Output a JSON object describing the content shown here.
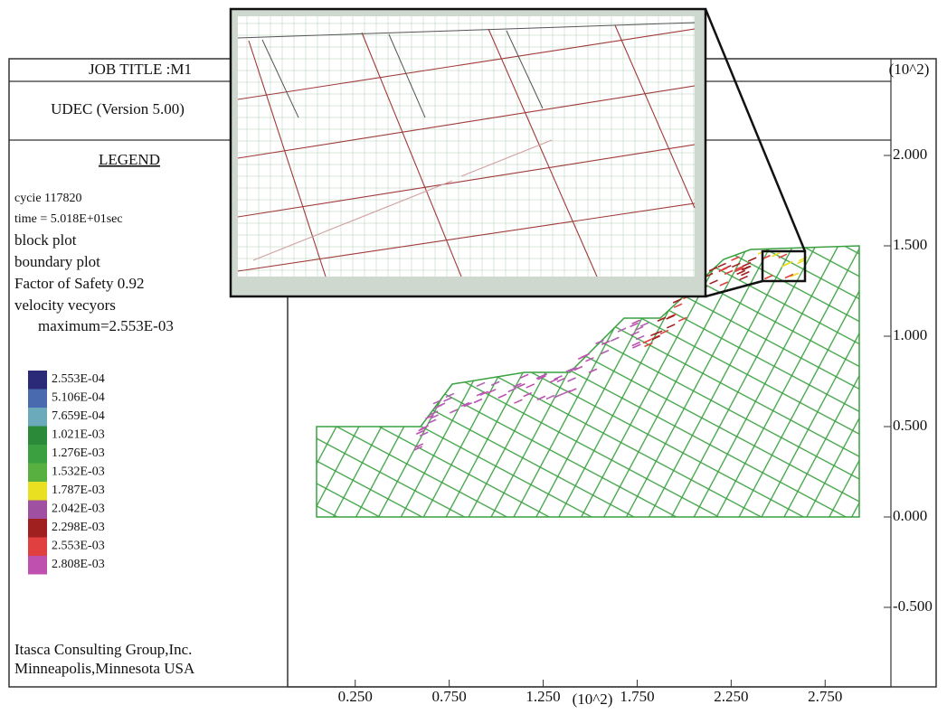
{
  "header": {
    "job_title": "JOB TITLE :M1",
    "version": "UDEC (Version 5.00)"
  },
  "legend": {
    "title": "LEGEND",
    "lines": [
      "cycie  117820",
      "time = 5.018E+01sec",
      "block plot",
      "boundary plot",
      "Factor of Safety 0.92",
      "velocity vecyors",
      "maximum=2.553E-03"
    ],
    "scale": [
      {
        "label": "2.553E-04",
        "color": "#2a2a78"
      },
      {
        "label": "5.106E-04",
        "color": "#4a6ab0"
      },
      {
        "label": "7.659E-04",
        "color": "#6aaabb"
      },
      {
        "label": "1.021E-03",
        "color": "#2a8a3a"
      },
      {
        "label": "1.276E-03",
        "color": "#3aa040"
      },
      {
        "label": "1.532E-03",
        "color": "#58b040"
      },
      {
        "label": "1.787E-03",
        "color": "#e8e020"
      },
      {
        "label": "2.042E-03",
        "color": "#a050a0"
      },
      {
        "label": "2.298E-03",
        "color": "#a02020"
      },
      {
        "label": "2.553E-03",
        "color": "#e04040"
      },
      {
        "label": "2.808E-03",
        "color": "#c050b0"
      }
    ]
  },
  "footer": {
    "lines": [
      "Itasca Consulting Group,Inc.",
      "Minneapolis,Minnesota USA"
    ]
  },
  "chart_data": {
    "type": "block-plot",
    "x_unit": "(10^2)",
    "y_unit": "(10^2)",
    "xlim": [
      -0.1,
      3.1
    ],
    "ylim": [
      -0.94,
      2.535
    ],
    "xticks": [
      {
        "value": 0.25,
        "label": "0.250"
      },
      {
        "value": 0.75,
        "label": "0.750"
      },
      {
        "value": 1.25,
        "label": "1.250"
      },
      {
        "value": 1.75,
        "label": "1.750"
      },
      {
        "value": 2.25,
        "label": "2.250"
      },
      {
        "value": 2.75,
        "label": "2.750"
      }
    ],
    "yticks": [
      {
        "value": -0.5,
        "label": "-0.500"
      },
      {
        "value": 0,
        "label": "0.000"
      },
      {
        "value": 0.5,
        "label": "0.500"
      },
      {
        "value": 1,
        "label": "1.000"
      },
      {
        "value": 1.5,
        "label": "1.500"
      },
      {
        "value": 2,
        "label": "2.000"
      }
    ]
  }
}
